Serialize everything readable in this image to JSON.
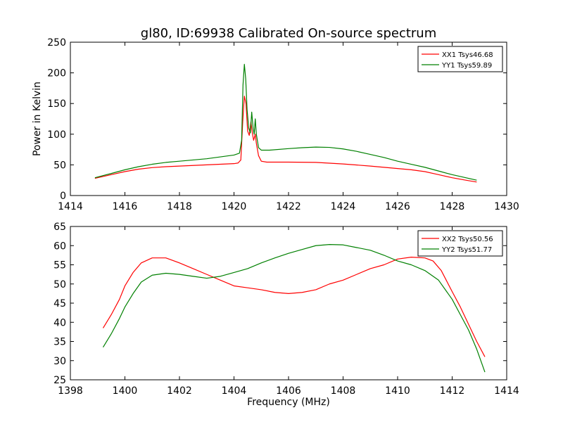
{
  "title": "gl80, ID:69938 Calibrated On-source spectrum",
  "chart_data": [
    {
      "type": "line",
      "title": "gl80, ID:69938 Calibrated On-source spectrum",
      "xlabel": "",
      "ylabel": "Power in Kelvin",
      "xlim": [
        1414,
        1430
      ],
      "ylim": [
        0,
        250
      ],
      "xticks": [
        1414,
        1416,
        1418,
        1420,
        1422,
        1424,
        1426,
        1428,
        1430
      ],
      "yticks": [
        0,
        50,
        100,
        150,
        200,
        250
      ],
      "grid": false,
      "legend": "top-right",
      "series": [
        {
          "name": "XX1 Tsys46.68",
          "color": "#ff0000",
          "points": [
            [
              1414.9,
              28
            ],
            [
              1415.5,
              34
            ],
            [
              1416.0,
              39
            ],
            [
              1416.5,
              43
            ],
            [
              1417.0,
              45.5
            ],
            [
              1417.5,
              47
            ],
            [
              1418.0,
              48
            ],
            [
              1418.5,
              49
            ],
            [
              1419.0,
              50
            ],
            [
              1419.5,
              51
            ],
            [
              1420.0,
              52
            ],
            [
              1420.15,
              53
            ],
            [
              1420.25,
              58
            ],
            [
              1420.32,
              120
            ],
            [
              1420.38,
              162
            ],
            [
              1420.44,
              150
            ],
            [
              1420.5,
              105
            ],
            [
              1420.56,
              98
            ],
            [
              1420.62,
              120
            ],
            [
              1420.68,
              100
            ],
            [
              1420.72,
              90
            ],
            [
              1420.78,
              100
            ],
            [
              1420.82,
              85
            ],
            [
              1420.9,
              65
            ],
            [
              1421.0,
              56
            ],
            [
              1421.2,
              54.5
            ],
            [
              1422.0,
              54.5
            ],
            [
              1423.0,
              54
            ],
            [
              1424.0,
              51.5
            ],
            [
              1425.0,
              48
            ],
            [
              1426.0,
              44
            ],
            [
              1426.5,
              42
            ],
            [
              1427.0,
              39
            ],
            [
              1427.5,
              34
            ],
            [
              1428.0,
              29
            ],
            [
              1428.5,
              25
            ],
            [
              1428.9,
              22
            ]
          ]
        },
        {
          "name": "YY1 Tsys59.89",
          "color": "#008000",
          "points": [
            [
              1414.9,
              29
            ],
            [
              1415.5,
              36
            ],
            [
              1416.0,
              42
            ],
            [
              1416.5,
              47
            ],
            [
              1417.0,
              51
            ],
            [
              1417.5,
              54
            ],
            [
              1418.0,
              56
            ],
            [
              1418.5,
              58
            ],
            [
              1419.0,
              60
            ],
            [
              1419.5,
              63
            ],
            [
              1420.0,
              66
            ],
            [
              1420.2,
              69
            ],
            [
              1420.28,
              90
            ],
            [
              1420.33,
              180
            ],
            [
              1420.38,
              214
            ],
            [
              1420.43,
              190
            ],
            [
              1420.48,
              140
            ],
            [
              1420.54,
              110
            ],
            [
              1420.6,
              102
            ],
            [
              1420.65,
              136
            ],
            [
              1420.7,
              110
            ],
            [
              1420.74,
              100
            ],
            [
              1420.78,
              125
            ],
            [
              1420.82,
              100
            ],
            [
              1420.9,
              78
            ],
            [
              1421.0,
              74
            ],
            [
              1421.3,
              74
            ],
            [
              1422.0,
              76.5
            ],
            [
              1422.5,
              78
            ],
            [
              1423.0,
              79
            ],
            [
              1423.5,
              78.5
            ],
            [
              1424.0,
              76
            ],
            [
              1424.5,
              72
            ],
            [
              1425.0,
              67
            ],
            [
              1425.5,
              62
            ],
            [
              1426.0,
              56
            ],
            [
              1426.5,
              51
            ],
            [
              1427.0,
              46
            ],
            [
              1427.5,
              40
            ],
            [
              1428.0,
              34
            ],
            [
              1428.5,
              29
            ],
            [
              1428.9,
              25
            ]
          ]
        }
      ]
    },
    {
      "type": "line",
      "title": "",
      "xlabel": "Frequency (MHz)",
      "ylabel": "",
      "xlim": [
        1398,
        1414
      ],
      "ylim": [
        25,
        65
      ],
      "xticks": [
        1398,
        1400,
        1402,
        1404,
        1406,
        1408,
        1410,
        1412,
        1414
      ],
      "yticks": [
        25,
        30,
        35,
        40,
        45,
        50,
        55,
        60,
        65
      ],
      "grid": false,
      "legend": "top-right",
      "series": [
        {
          "name": "XX2 Tsys50.56",
          "color": "#ff0000",
          "points": [
            [
              1399.2,
              38.5
            ],
            [
              1399.5,
              42
            ],
            [
              1399.8,
              46
            ],
            [
              1400.0,
              49.5
            ],
            [
              1400.3,
              53
            ],
            [
              1400.6,
              55.5
            ],
            [
              1401.0,
              56.8
            ],
            [
              1401.5,
              56.8
            ],
            [
              1402.0,
              55.5
            ],
            [
              1402.5,
              54
            ],
            [
              1403.0,
              52.5
            ],
            [
              1403.5,
              51
            ],
            [
              1404.0,
              49.5
            ],
            [
              1404.5,
              49
            ],
            [
              1405.0,
              48.5
            ],
            [
              1405.5,
              47.8
            ],
            [
              1406.0,
              47.5
            ],
            [
              1406.5,
              47.8
            ],
            [
              1407.0,
              48.5
            ],
            [
              1407.5,
              50
            ],
            [
              1408.0,
              51
            ],
            [
              1408.5,
              52.5
            ],
            [
              1409.0,
              54
            ],
            [
              1409.5,
              55
            ],
            [
              1410.0,
              56.5
            ],
            [
              1410.5,
              57
            ],
            [
              1411.0,
              56.8
            ],
            [
              1411.3,
              56
            ],
            [
              1411.6,
              53.5
            ],
            [
              1412.0,
              48
            ],
            [
              1412.3,
              44
            ],
            [
              1412.6,
              39.5
            ],
            [
              1412.9,
              35
            ],
            [
              1413.2,
              31
            ]
          ]
        },
        {
          "name": "YY2 Tsys51.77",
          "color": "#008000",
          "points": [
            [
              1399.2,
              33.5
            ],
            [
              1399.5,
              37
            ],
            [
              1399.8,
              41
            ],
            [
              1400.0,
              44
            ],
            [
              1400.3,
              47.5
            ],
            [
              1400.6,
              50.5
            ],
            [
              1401.0,
              52.3
            ],
            [
              1401.5,
              52.8
            ],
            [
              1402.0,
              52.5
            ],
            [
              1402.5,
              52
            ],
            [
              1403.0,
              51.5
            ],
            [
              1403.5,
              52
            ],
            [
              1404.0,
              53
            ],
            [
              1404.5,
              54
            ],
            [
              1405.0,
              55.5
            ],
            [
              1405.5,
              56.8
            ],
            [
              1406.0,
              58
            ],
            [
              1406.5,
              59
            ],
            [
              1407.0,
              60
            ],
            [
              1407.5,
              60.3
            ],
            [
              1408.0,
              60.2
            ],
            [
              1408.5,
              59.5
            ],
            [
              1409.0,
              58.8
            ],
            [
              1409.5,
              57.5
            ],
            [
              1410.0,
              56
            ],
            [
              1410.5,
              55
            ],
            [
              1411.0,
              53.5
            ],
            [
              1411.5,
              51
            ],
            [
              1412.0,
              46
            ],
            [
              1412.3,
              42
            ],
            [
              1412.6,
              38
            ],
            [
              1412.9,
              33
            ],
            [
              1413.2,
              27
            ]
          ]
        }
      ]
    }
  ]
}
